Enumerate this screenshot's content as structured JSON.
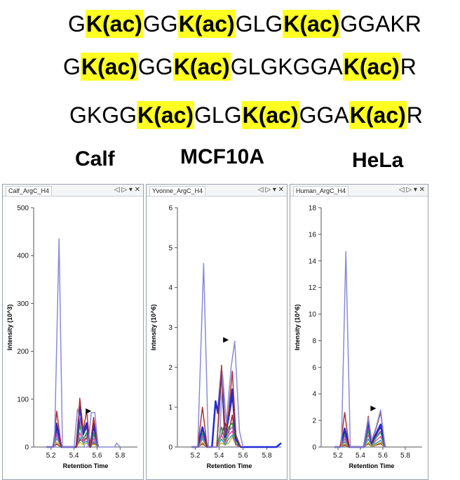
{
  "sequences": [
    [
      {
        "t": "G",
        "hl": false
      },
      {
        "t": "K(ac)",
        "hl": true
      },
      {
        "t": "GG",
        "hl": false
      },
      {
        "t": "K(ac)",
        "hl": true
      },
      {
        "t": "GLG",
        "hl": false
      },
      {
        "t": "K(ac)",
        "hl": true
      },
      {
        "t": "GGAKR",
        "hl": false
      }
    ],
    [
      {
        "t": "G",
        "hl": false
      },
      {
        "t": "K(ac)",
        "hl": true
      },
      {
        "t": "GG",
        "hl": false
      },
      {
        "t": "K(ac)",
        "hl": true
      },
      {
        "t": "GLGKGGA",
        "hl": false
      },
      {
        "t": "K(ac)",
        "hl": true
      },
      {
        "t": "R",
        "hl": false
      }
    ],
    [
      {
        "t": "GKGG",
        "hl": false
      },
      {
        "t": "K(ac)",
        "hl": true
      },
      {
        "t": "GLG",
        "hl": false
      },
      {
        "t": "K(ac)",
        "hl": true
      },
      {
        "t": "GGA",
        "hl": false
      },
      {
        "t": "K(ac)",
        "hl": true
      },
      {
        "t": "R",
        "hl": false
      }
    ]
  ],
  "samples": [
    "Calf",
    "MCF10A",
    "HeLa"
  ],
  "highlight_color": "#ffff22",
  "panel_controls": "◁ ▷ ▾ ✕",
  "chart_data": [
    {
      "type": "line",
      "title": "Calf_ArgC_H4",
      "xlabel": "Retention Time",
      "ylabel": "Intensity (10^3)",
      "xlim": [
        5.05,
        5.95
      ],
      "ylim": [
        0,
        500
      ],
      "yticks": [
        0,
        100,
        200,
        300,
        400,
        500
      ],
      "xticks": [
        "5.2",
        "5.4",
        "5.6",
        "5.8"
      ],
      "xtick_values": [
        5.2,
        5.4,
        5.6,
        5.8
      ],
      "marker_x": 5.55,
      "series": [
        {
          "name": "trace-1",
          "color": "#8a8ad8",
          "width": 1.5,
          "x": [
            5.16,
            5.23,
            5.27,
            5.3,
            5.36,
            5.4,
            5.43,
            5.46,
            5.49,
            5.52,
            5.55,
            5.58,
            5.61,
            5.66,
            5.75,
            5.77,
            5.8
          ],
          "y": [
            0,
            0,
            435,
            0,
            0,
            0,
            80,
            45,
            0,
            0,
            72,
            72,
            0,
            0,
            0,
            8,
            0
          ]
        },
        {
          "name": "trace-2",
          "color": "#b03030",
          "width": 1.5,
          "x": [
            5.16,
            5.22,
            5.25,
            5.29,
            5.38,
            5.42,
            5.45,
            5.48,
            5.51,
            5.54,
            5.57,
            5.61
          ],
          "y": [
            0,
            0,
            75,
            0,
            0,
            0,
            102,
            35,
            75,
            0,
            62,
            0
          ]
        },
        {
          "name": "trace-3",
          "color": "#1f2bd6",
          "width": 2.5,
          "x": [
            5.16,
            5.22,
            5.25,
            5.29,
            5.38,
            5.42,
            5.45,
            5.48,
            5.51,
            5.54,
            5.57,
            5.61
          ],
          "y": [
            0,
            0,
            45,
            0,
            0,
            0,
            85,
            30,
            50,
            0,
            50,
            0
          ]
        },
        {
          "name": "trace-4",
          "color": "#2d2d80",
          "width": 1.5,
          "x": [
            5.16,
            5.22,
            5.25,
            5.29,
            5.38,
            5.42,
            5.45,
            5.48,
            5.51,
            5.54,
            5.57,
            5.61
          ],
          "y": [
            0,
            0,
            50,
            0,
            0,
            0,
            60,
            25,
            42,
            0,
            40,
            0
          ]
        },
        {
          "name": "trace-5",
          "color": "#2e9e3a",
          "width": 1.5,
          "x": [
            5.16,
            5.22,
            5.25,
            5.29,
            5.38,
            5.42,
            5.45,
            5.48,
            5.51,
            5.54,
            5.57,
            5.61
          ],
          "y": [
            0,
            0,
            40,
            0,
            0,
            0,
            45,
            15,
            30,
            0,
            30,
            0
          ]
        },
        {
          "name": "trace-6",
          "color": "#b25ac8",
          "width": 1.5,
          "x": [
            5.16,
            5.22,
            5.25,
            5.29,
            5.38,
            5.42,
            5.45,
            5.48,
            5.51,
            5.54,
            5.57,
            5.61
          ],
          "y": [
            0,
            0,
            32,
            0,
            0,
            0,
            50,
            18,
            25,
            0,
            25,
            0
          ]
        },
        {
          "name": "trace-7",
          "color": "#e05090",
          "width": 1.5,
          "x": [
            5.16,
            5.22,
            5.25,
            5.29,
            5.38,
            5.42,
            5.45,
            5.48,
            5.51,
            5.54,
            5.57,
            5.61
          ],
          "y": [
            0,
            0,
            25,
            0,
            0,
            0,
            30,
            10,
            18,
            0,
            18,
            0
          ]
        },
        {
          "name": "trace-8",
          "color": "#30a0c0",
          "width": 1.5,
          "x": [
            5.16,
            5.22,
            5.25,
            5.29,
            5.38,
            5.42,
            5.45,
            5.48,
            5.51,
            5.54,
            5.57,
            5.61
          ],
          "y": [
            0,
            0,
            18,
            0,
            0,
            0,
            20,
            8,
            12,
            0,
            12,
            0
          ]
        },
        {
          "name": "trace-9",
          "color": "#d0c020",
          "width": 1.5,
          "x": [
            5.16,
            5.22,
            5.25,
            5.29,
            5.38,
            5.42,
            5.45,
            5.48,
            5.51,
            5.54,
            5.57,
            5.61
          ],
          "y": [
            0,
            0,
            10,
            0,
            0,
            0,
            10,
            5,
            8,
            0,
            6,
            0
          ]
        },
        {
          "name": "trace-10",
          "color": "#a02020",
          "width": 1.5,
          "x": [
            5.16,
            5.22,
            5.25,
            5.29,
            5.38,
            5.42,
            5.45,
            5.48,
            5.51,
            5.54,
            5.57,
            5.61
          ],
          "y": [
            0,
            0,
            6,
            0,
            0,
            0,
            15,
            12,
            20,
            0,
            8,
            0
          ]
        }
      ]
    },
    {
      "type": "line",
      "title": "Yvonne_ArgC_H4",
      "xlabel": "Retention Time",
      "ylabel": "Intensity (10^6)",
      "xlim": [
        5.05,
        5.92
      ],
      "ylim": [
        0,
        6
      ],
      "yticks": [
        0,
        1,
        2,
        3,
        4,
        5,
        6
      ],
      "xticks": [
        "5.2",
        "5.4",
        "5.6",
        "5.8"
      ],
      "xtick_values": [
        5.2,
        5.4,
        5.6,
        5.8
      ],
      "marker_x": 5.48,
      "series": [
        {
          "name": "trace-1",
          "color": "#8a8ad8",
          "width": 1.5,
          "x": [
            5.17,
            5.22,
            5.27,
            5.31,
            5.4,
            5.43,
            5.46,
            5.5,
            5.53,
            5.57,
            5.6
          ],
          "y": [
            0,
            0,
            4.6,
            0,
            0,
            1.8,
            0.6,
            2.0,
            2.65,
            0.4,
            0
          ]
        },
        {
          "name": "trace-2",
          "color": "#b03030",
          "width": 1.5,
          "x": [
            5.17,
            5.22,
            5.26,
            5.3,
            5.34,
            5.38,
            5.42,
            5.45,
            5.48,
            5.51,
            5.54,
            5.58
          ],
          "y": [
            0,
            0,
            1.0,
            0,
            0,
            0,
            2.05,
            0.3,
            0.9,
            1.9,
            0.3,
            0
          ]
        },
        {
          "name": "trace-3",
          "color": "#1f2bd6",
          "width": 2.5,
          "x": [
            5.17,
            5.22,
            5.26,
            5.3,
            5.34,
            5.37,
            5.39,
            5.42,
            5.45,
            5.48,
            5.51,
            5.54,
            5.58,
            5.88,
            5.92
          ],
          "y": [
            0,
            0,
            0.5,
            0,
            0,
            1.15,
            0.85,
            1.9,
            0.25,
            0.75,
            1.45,
            0.2,
            0,
            0,
            0.1
          ]
        },
        {
          "name": "trace-4",
          "color": "#2d2d80",
          "width": 1.5,
          "x": [
            5.17,
            5.22,
            5.26,
            5.3,
            5.38,
            5.42,
            5.45,
            5.48,
            5.51,
            5.54,
            5.58
          ],
          "y": [
            0,
            0,
            0.45,
            0,
            0,
            1.8,
            0.3,
            0.7,
            1.25,
            0.2,
            0
          ]
        },
        {
          "name": "trace-5",
          "color": "#2e9e3a",
          "width": 1.5,
          "x": [
            5.17,
            5.22,
            5.26,
            5.3,
            5.38,
            5.42,
            5.45,
            5.48,
            5.51,
            5.54,
            5.58
          ],
          "y": [
            0,
            0,
            0.35,
            0,
            0,
            0.5,
            0.15,
            0.5,
            0.6,
            0.1,
            0
          ]
        },
        {
          "name": "trace-6",
          "color": "#b25ac8",
          "width": 1.5,
          "x": [
            5.17,
            5.22,
            5.26,
            5.3,
            5.38,
            5.42,
            5.45,
            5.48,
            5.51,
            5.54,
            5.58
          ],
          "y": [
            0,
            0,
            0.3,
            0,
            0,
            0.5,
            0.15,
            0.4,
            0.5,
            0.1,
            0
          ]
        },
        {
          "name": "trace-7",
          "color": "#e05090",
          "width": 1.5,
          "x": [
            5.17,
            5.22,
            5.26,
            5.3,
            5.38,
            5.42,
            5.45,
            5.48,
            5.51,
            5.54,
            5.58
          ],
          "y": [
            0,
            0,
            0.25,
            0,
            0,
            0.3,
            0.1,
            0.3,
            0.4,
            0.05,
            0
          ]
        },
        {
          "name": "trace-8",
          "color": "#30a0c0",
          "width": 1.5,
          "x": [
            5.17,
            5.22,
            5.26,
            5.3,
            5.38,
            5.42,
            5.45,
            5.48,
            5.51,
            5.54,
            5.58
          ],
          "y": [
            0,
            0,
            0.2,
            0,
            0,
            0.2,
            0.05,
            0.2,
            0.3,
            0.05,
            0
          ]
        },
        {
          "name": "trace-9",
          "color": "#d0c020",
          "width": 1.5,
          "x": [
            5.17,
            5.22,
            5.26,
            5.3,
            5.38,
            5.42,
            5.45,
            5.48,
            5.51,
            5.54,
            5.58
          ],
          "y": [
            0,
            0,
            0.12,
            0,
            0,
            0.1,
            0.05,
            0.1,
            0.25,
            0.05,
            0
          ]
        },
        {
          "name": "trace-10",
          "color": "#a02020",
          "width": 1.5,
          "x": [
            5.17,
            5.22,
            5.26,
            5.3,
            5.38,
            5.42,
            5.45,
            5.48,
            5.51,
            5.54,
            5.58
          ],
          "y": [
            0,
            0,
            0.08,
            0,
            0,
            0.3,
            0.6,
            0.35,
            0.8,
            0.1,
            0
          ]
        }
      ]
    },
    {
      "type": "line",
      "title": "Human_ArgC_H4",
      "xlabel": "Retention Time",
      "ylabel": "Intensity (10^6)",
      "xlim": [
        5.05,
        5.95
      ],
      "ylim": [
        0,
        18
      ],
      "yticks": [
        0,
        2,
        4,
        6,
        8,
        10,
        12,
        14,
        16,
        18
      ],
      "xticks": [
        "5.2",
        "5.4",
        "5.6",
        "5.8"
      ],
      "xtick_values": [
        5.2,
        5.4,
        5.6,
        5.8
      ],
      "marker_x": 5.54,
      "series": [
        {
          "name": "trace-1",
          "color": "#8a8ad8",
          "width": 1.5,
          "x": [
            5.17,
            5.23,
            5.27,
            5.31,
            5.38,
            5.43,
            5.47,
            5.5,
            5.54,
            5.58,
            5.62
          ],
          "y": [
            0,
            0,
            14.7,
            0,
            0,
            0,
            2.2,
            0.5,
            1.5,
            2.8,
            0
          ]
        },
        {
          "name": "trace-2",
          "color": "#b03030",
          "width": 1.5,
          "x": [
            5.17,
            5.22,
            5.26,
            5.3,
            5.38,
            5.43,
            5.47,
            5.5,
            5.54,
            5.58,
            5.62
          ],
          "y": [
            0,
            0,
            2.6,
            0,
            0,
            0,
            2.3,
            0.4,
            1.4,
            2.6,
            0
          ]
        },
        {
          "name": "trace-3",
          "color": "#1f2bd6",
          "width": 2.5,
          "x": [
            5.17,
            5.22,
            5.26,
            5.3,
            5.38,
            5.43,
            5.47,
            5.5,
            5.54,
            5.58,
            5.62
          ],
          "y": [
            0,
            0,
            1.4,
            0,
            0,
            0,
            2.0,
            0.3,
            1.0,
            1.7,
            0
          ]
        },
        {
          "name": "trace-4",
          "color": "#2d2d80",
          "width": 1.5,
          "x": [
            5.17,
            5.22,
            5.26,
            5.3,
            5.38,
            5.43,
            5.47,
            5.5,
            5.54,
            5.58,
            5.62
          ],
          "y": [
            0,
            0,
            1.2,
            0,
            0,
            0,
            1.7,
            0.3,
            0.9,
            1.5,
            0
          ]
        },
        {
          "name": "trace-5",
          "color": "#2e9e3a",
          "width": 1.5,
          "x": [
            5.17,
            5.22,
            5.26,
            5.3,
            5.38,
            5.43,
            5.47,
            5.5,
            5.54,
            5.58,
            5.62
          ],
          "y": [
            0,
            0,
            1.0,
            0,
            0,
            0,
            1.2,
            0.2,
            0.7,
            1.1,
            0
          ]
        },
        {
          "name": "trace-6",
          "color": "#b25ac8",
          "width": 1.5,
          "x": [
            5.17,
            5.22,
            5.26,
            5.3,
            5.38,
            5.43,
            5.47,
            5.5,
            5.54,
            5.58,
            5.62
          ],
          "y": [
            0,
            0,
            0.8,
            0,
            0,
            0,
            1.4,
            0.2,
            0.8,
            1.2,
            0
          ]
        },
        {
          "name": "trace-7",
          "color": "#e05090",
          "width": 1.5,
          "x": [
            5.17,
            5.22,
            5.26,
            5.3,
            5.38,
            5.43,
            5.47,
            5.5,
            5.54,
            5.58,
            5.62
          ],
          "y": [
            0,
            0,
            0.6,
            0,
            0,
            0,
            0.9,
            0.15,
            0.5,
            0.8,
            0
          ]
        },
        {
          "name": "trace-8",
          "color": "#30a0c0",
          "width": 1.5,
          "x": [
            5.17,
            5.22,
            5.26,
            5.3,
            5.38,
            5.43,
            5.47,
            5.5,
            5.54,
            5.58,
            5.62
          ],
          "y": [
            0,
            0,
            0.4,
            0,
            0,
            0,
            0.6,
            0.1,
            0.3,
            0.5,
            0
          ]
        },
        {
          "name": "trace-9",
          "color": "#d0c020",
          "width": 1.5,
          "x": [
            5.17,
            5.22,
            5.26,
            5.3,
            5.38,
            5.43,
            5.47,
            5.5,
            5.54,
            5.58,
            5.62
          ],
          "y": [
            0,
            0,
            0.25,
            0,
            0,
            0,
            0.35,
            0.05,
            0.2,
            0.35,
            0
          ]
        },
        {
          "name": "trace-10",
          "color": "#a02020",
          "width": 1.5,
          "x": [
            5.17,
            5.22,
            5.26,
            5.3,
            5.38,
            5.43,
            5.47,
            5.5,
            5.54,
            5.58,
            5.62
          ],
          "y": [
            0,
            0,
            0.15,
            0,
            0,
            0,
            0.25,
            0.05,
            0.15,
            0.25,
            0
          ]
        }
      ]
    }
  ]
}
